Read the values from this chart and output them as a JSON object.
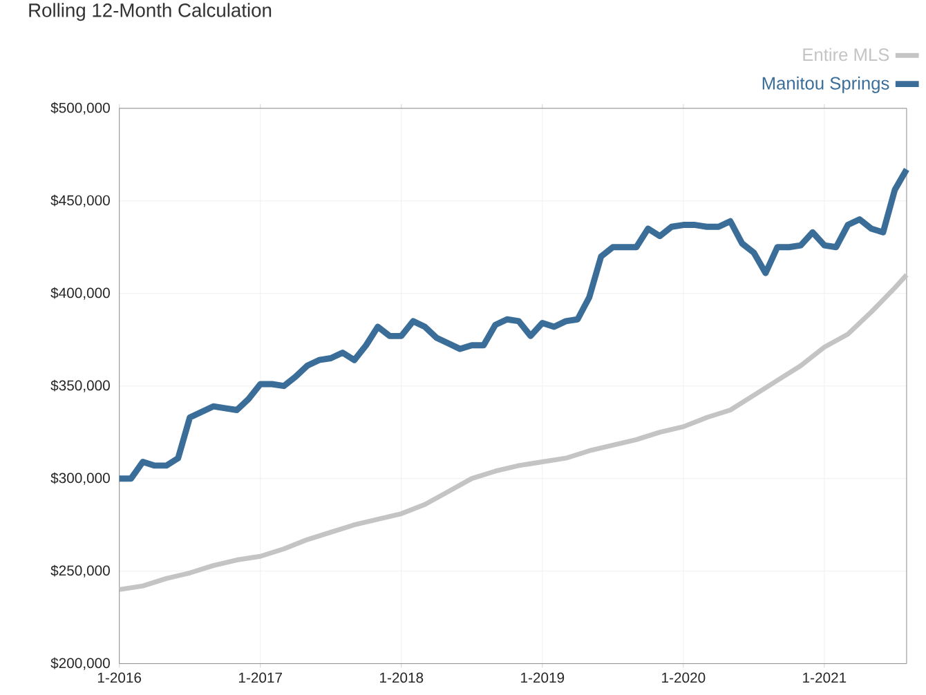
{
  "chart_data": {
    "type": "line",
    "title": "Rolling 12-Month Calculation",
    "xlim": [
      "2016-01",
      "2021-08"
    ],
    "xticks": [
      {
        "value": "2016-01",
        "label": "1-2016"
      },
      {
        "value": "2017-01",
        "label": "1-2017"
      },
      {
        "value": "2018-01",
        "label": "1-2018"
      },
      {
        "value": "2019-01",
        "label": "1-2019"
      },
      {
        "value": "2020-01",
        "label": "1-2020"
      },
      {
        "value": "2021-01",
        "label": "1-2021"
      }
    ],
    "ylim": [
      200000,
      500000
    ],
    "yticks": [
      {
        "value": 200000,
        "label": "$200,000"
      },
      {
        "value": 250000,
        "label": "$250,000"
      },
      {
        "value": 300000,
        "label": "$300,000"
      },
      {
        "value": 350000,
        "label": "$350,000"
      },
      {
        "value": 400000,
        "label": "$400,000"
      },
      {
        "value": 450000,
        "label": "$450,000"
      },
      {
        "value": 500000,
        "label": "$500,000"
      }
    ],
    "grid": true,
    "legend": "top right",
    "marker": "none",
    "line_style": "solid",
    "series": [
      {
        "name": "Entire MLS",
        "color": "#c4c4c4",
        "x": [
          "2016-01",
          "2016-03",
          "2016-05",
          "2016-07",
          "2016-09",
          "2016-11",
          "2017-01",
          "2017-03",
          "2017-05",
          "2017-07",
          "2017-09",
          "2017-11",
          "2018-01",
          "2018-03",
          "2018-05",
          "2018-07",
          "2018-09",
          "2018-11",
          "2019-01",
          "2019-03",
          "2019-05",
          "2019-07",
          "2019-09",
          "2019-11",
          "2020-01",
          "2020-03",
          "2020-05",
          "2020-07",
          "2020-09",
          "2020-11",
          "2021-01",
          "2021-03",
          "2021-05",
          "2021-07",
          "2021-08"
        ],
        "values": [
          240000,
          242000,
          246000,
          249000,
          253000,
          256000,
          258000,
          262000,
          267000,
          271000,
          275000,
          278000,
          281000,
          286000,
          293000,
          300000,
          304000,
          307000,
          309000,
          311000,
          315000,
          318000,
          321000,
          325000,
          328000,
          333000,
          337000,
          345000,
          353000,
          361000,
          371000,
          378000,
          390000,
          403000,
          410000
        ]
      },
      {
        "name": "Manitou Springs",
        "color": "#3a6e99",
        "x": [
          "2016-01",
          "2016-02",
          "2016-03",
          "2016-04",
          "2016-05",
          "2016-06",
          "2016-07",
          "2016-08",
          "2016-09",
          "2016-10",
          "2016-11",
          "2016-12",
          "2017-01",
          "2017-02",
          "2017-03",
          "2017-04",
          "2017-05",
          "2017-06",
          "2017-07",
          "2017-08",
          "2017-09",
          "2017-10",
          "2017-11",
          "2017-12",
          "2018-01",
          "2018-02",
          "2018-03",
          "2018-04",
          "2018-05",
          "2018-06",
          "2018-07",
          "2018-08",
          "2018-09",
          "2018-10",
          "2018-11",
          "2018-12",
          "2019-01",
          "2019-02",
          "2019-03",
          "2019-04",
          "2019-05",
          "2019-06",
          "2019-07",
          "2019-08",
          "2019-09",
          "2019-10",
          "2019-11",
          "2019-12",
          "2020-01",
          "2020-02",
          "2020-03",
          "2020-04",
          "2020-05",
          "2020-06",
          "2020-07",
          "2020-08",
          "2020-09",
          "2020-10",
          "2020-11",
          "2020-12",
          "2021-01",
          "2021-02",
          "2021-03",
          "2021-04",
          "2021-05",
          "2021-06",
          "2021-07",
          "2021-08"
        ],
        "values": [
          300000,
          300000,
          309000,
          307000,
          307000,
          311000,
          333000,
          336000,
          339000,
          338000,
          337000,
          343000,
          351000,
          351000,
          350000,
          355000,
          361000,
          364000,
          365000,
          368000,
          364000,
          372000,
          382000,
          377000,
          377000,
          385000,
          382000,
          376000,
          373000,
          370000,
          372000,
          372000,
          383000,
          386000,
          385000,
          377000,
          384000,
          382000,
          385000,
          386000,
          398000,
          420000,
          425000,
          425000,
          425000,
          435000,
          431000,
          436000,
          437000,
          437000,
          436000,
          436000,
          439000,
          427000,
          422000,
          411000,
          425000,
          425000,
          426000,
          433000,
          426000,
          425000,
          437000,
          440000,
          435000,
          433000,
          456000,
          467000
        ]
      }
    ]
  }
}
